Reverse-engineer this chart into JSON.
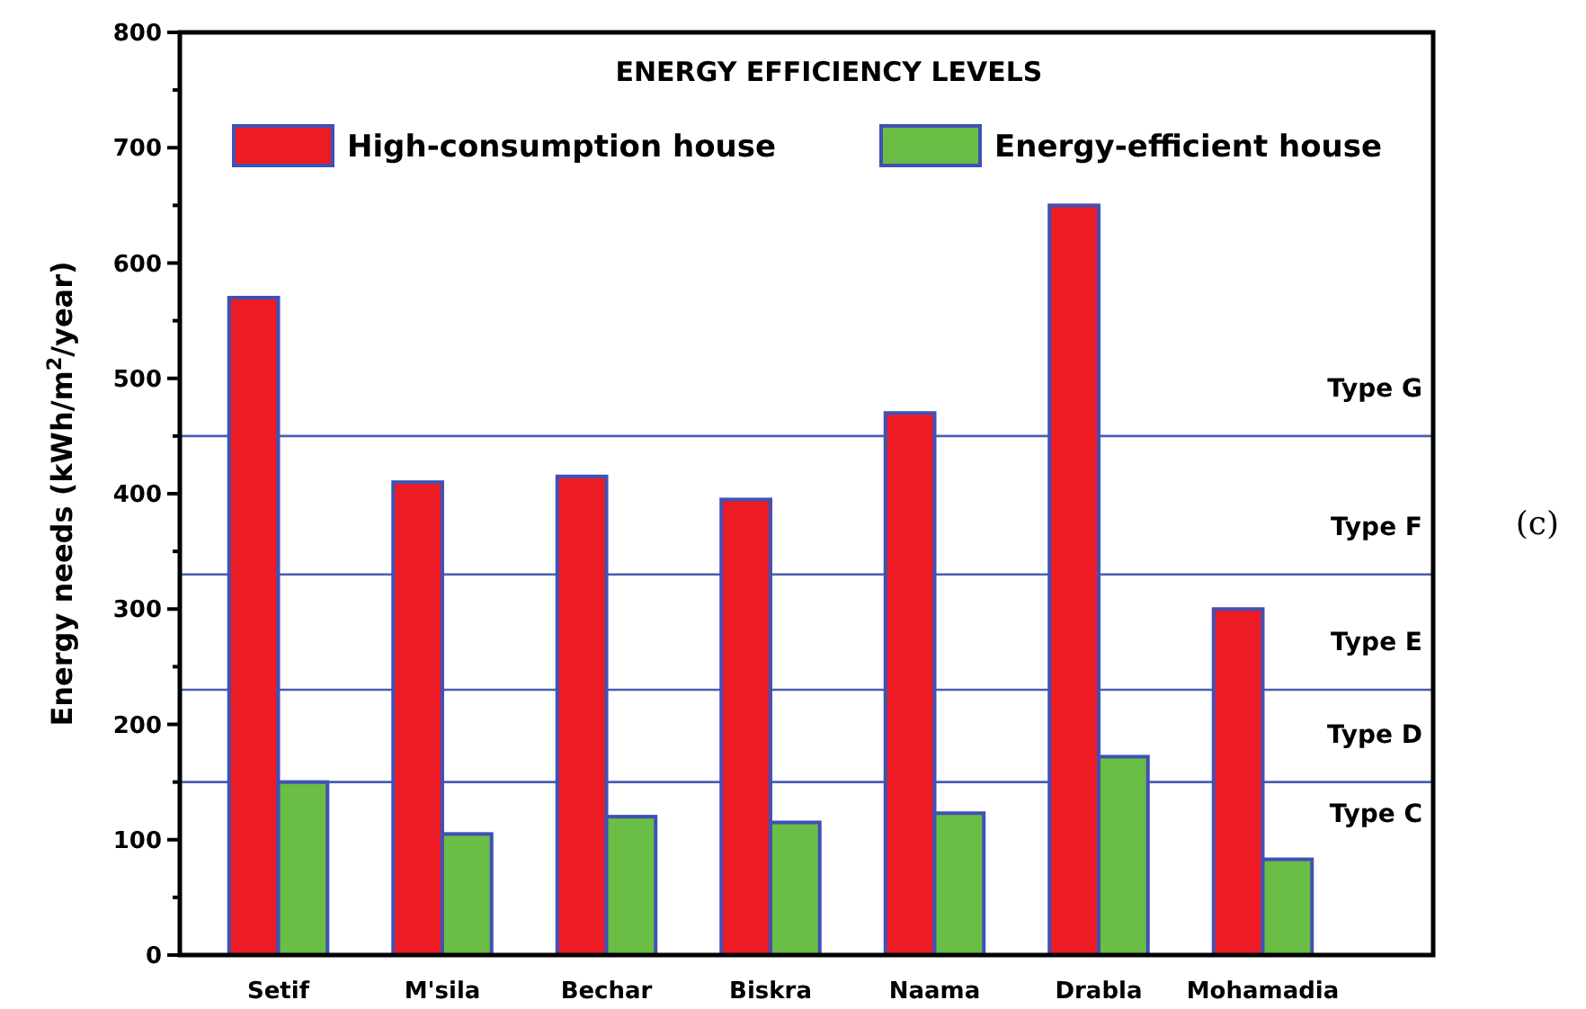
{
  "chart_data": {
    "type": "bar",
    "ylabel": "Energy needs (kWh/m$^{2}$/year)",
    "legend_title": "ENERGY EFFICIENCY LEVELS",
    "legend": "top",
    "categories": [
      "Setif",
      "M'sila",
      "Bechar",
      "Biskra",
      "Naama",
      "Drabla",
      "Mohamadia"
    ],
    "series": [
      {
        "name": "High-consumption house",
        "color": "#ed1c24",
        "values": [
          570,
          410,
          415,
          395,
          470,
          650,
          300
        ]
      },
      {
        "name": "Energy-efficient house",
        "color": "#6abd45",
        "values": [
          150,
          105,
          120,
          115,
          123,
          172,
          83
        ]
      }
    ],
    "ylim": [
      0,
      800
    ],
    "yticks": [
      0,
      {
        "value": 50,
        "label": null
      },
      100,
      {
        "value": 150,
        "label": null
      },
      200,
      {
        "value": 250,
        "label": null
      },
      300,
      {
        "value": 350,
        "label": null
      },
      400,
      {
        "value": 450,
        "label": null
      },
      500,
      {
        "value": 550,
        "label": null
      },
      600,
      {
        "value": 650,
        "label": null
      },
      700,
      {
        "value": 750,
        "label": null
      },
      800
    ],
    "grid": false,
    "ref_lines": [
      {
        "axis": "y",
        "value": 450,
        "label": "Type G",
        "color": "#4a5fb0"
      },
      {
        "axis": "y",
        "value": 330,
        "label": "Type F",
        "color": "#4a5fb0"
      },
      {
        "axis": "y",
        "value": 230,
        "label": "Type E",
        "color": "#4a5fb0"
      },
      {
        "axis": "y",
        "value": 150,
        "label": "Type D",
        "color": "#4a5fb0"
      }
    ],
    "annotations": [
      "Type C",
      "(c)"
    ]
  }
}
